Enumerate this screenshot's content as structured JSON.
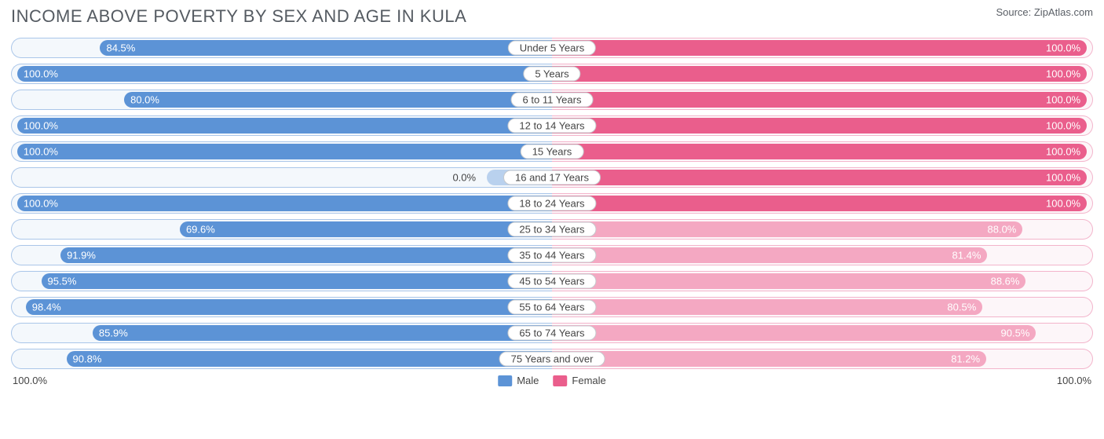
{
  "title": "INCOME ABOVE POVERTY BY SEX AND AGE IN KULA",
  "source": "Source: ZipAtlas.com",
  "axis": {
    "left": "100.0%",
    "right": "100.0%"
  },
  "legend": [
    {
      "label": "Male",
      "color": "#5c93d6"
    },
    {
      "label": "Female",
      "color": "#ea5e8c"
    }
  ],
  "colors": {
    "male_bar": "#5c93d6",
    "male_bar_light": "#b9d1ee",
    "male_track_border": "#aac6e9",
    "male_track_bg": "#f4f8fc",
    "female_bar": "#ea5e8c",
    "female_bar_light": "#f4a8c2",
    "female_track_border": "#f3b4cb",
    "female_track_bg": "#fdf6f9",
    "label_border": "#c6c9cd",
    "label_text": "#444444",
    "val_text_on_bar": "#ffffff"
  },
  "chart": {
    "type": "diverging-bar",
    "max": 100.0,
    "inner_pad_pct": 1.0,
    "rows": [
      {
        "category": "Under 5 Years",
        "male": 84.5,
        "male_label": "84.5%",
        "female": 100.0,
        "female_label": "100.0%"
      },
      {
        "category": "5 Years",
        "male": 100.0,
        "male_label": "100.0%",
        "female": 100.0,
        "female_label": "100.0%"
      },
      {
        "category": "6 to 11 Years",
        "male": 80.0,
        "male_label": "80.0%",
        "female": 100.0,
        "female_label": "100.0%"
      },
      {
        "category": "12 to 14 Years",
        "male": 100.0,
        "male_label": "100.0%",
        "female": 100.0,
        "female_label": "100.0%"
      },
      {
        "category": "15 Years",
        "male": 100.0,
        "male_label": "100.0%",
        "female": 100.0,
        "female_label": "100.0%"
      },
      {
        "category": "16 and 17 Years",
        "male": 0.0,
        "male_label": "0.0%",
        "female": 100.0,
        "female_label": "100.0%"
      },
      {
        "category": "18 to 24 Years",
        "male": 100.0,
        "male_label": "100.0%",
        "female": 100.0,
        "female_label": "100.0%"
      },
      {
        "category": "25 to 34 Years",
        "male": 69.6,
        "male_label": "69.6%",
        "female": 88.0,
        "female_label": "88.0%"
      },
      {
        "category": "35 to 44 Years",
        "male": 91.9,
        "male_label": "91.9%",
        "female": 81.4,
        "female_label": "81.4%"
      },
      {
        "category": "45 to 54 Years",
        "male": 95.5,
        "male_label": "95.5%",
        "female": 88.6,
        "female_label": "88.6%"
      },
      {
        "category": "55 to 64 Years",
        "male": 98.4,
        "male_label": "98.4%",
        "female": 80.5,
        "female_label": "80.5%"
      },
      {
        "category": "65 to 74 Years",
        "male": 85.9,
        "male_label": "85.9%",
        "female": 90.5,
        "female_label": "90.5%"
      },
      {
        "category": "75 Years and over",
        "male": 90.8,
        "male_label": "90.8%",
        "female": 81.2,
        "female_label": "81.2%"
      }
    ]
  }
}
